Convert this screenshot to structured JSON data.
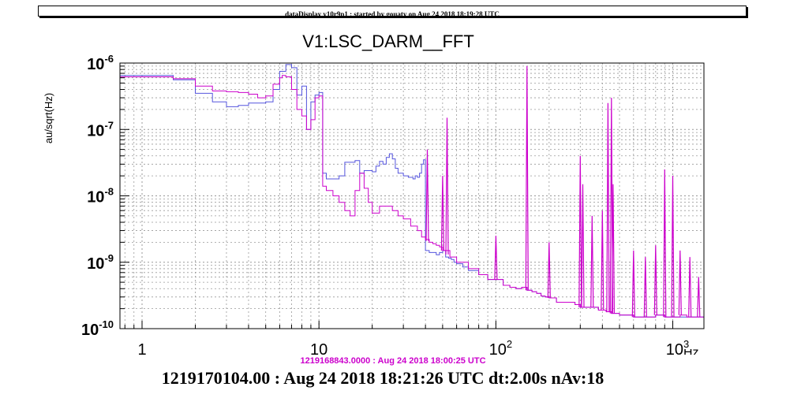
{
  "header": {
    "text": "dataDisplay v10r9p1 : started by gouaty on Aug 24 2018 18:19:28 UTC"
  },
  "chart_data": {
    "type": "line",
    "title": "V1:LSC_DARM__FFT",
    "ylabel": "au/sqrt(Hz)",
    "xlabel": "Hz",
    "xscale": "log",
    "yscale": "log",
    "xlim": [
      0.75,
      1500
    ],
    "ylim": [
      1e-10,
      1e-06
    ],
    "grid": true,
    "x_tick_labels": [
      {
        "value": 1,
        "label": "1"
      },
      {
        "value": 10,
        "label": "10"
      },
      {
        "value": 100,
        "base": "10",
        "exp": "2"
      },
      {
        "value": 1000,
        "base": "10",
        "exp": "3"
      }
    ],
    "y_tick_labels": [
      {
        "value": 1e-06,
        "base": "10",
        "exp": "-6"
      },
      {
        "value": 1e-07,
        "base": "10",
        "exp": "-7"
      },
      {
        "value": 1e-08,
        "base": "10",
        "exp": "-8"
      },
      {
        "value": 1e-09,
        "base": "10",
        "exp": "-9"
      },
      {
        "value": 1e-10,
        "base": "10",
        "exp": "-10"
      }
    ],
    "series": [
      {
        "color": "#5555dd",
        "x": [
          0.75,
          1,
          1.5,
          2,
          2.5,
          3,
          3.5,
          4,
          5,
          5.5,
          6,
          6.5,
          7,
          7.5,
          8,
          8.5,
          9,
          9.5,
          10,
          10.5,
          11,
          12,
          13,
          14,
          15,
          16,
          17,
          18,
          19,
          20,
          21,
          22,
          23,
          24,
          25,
          26,
          27,
          28,
          30,
          32,
          34,
          35,
          36,
          37,
          38,
          39,
          40,
          42,
          44,
          46,
          48,
          50,
          52,
          54,
          56,
          58,
          60,
          65,
          70,
          80,
          90,
          100,
          110,
          120,
          130,
          140,
          150,
          160,
          170,
          180,
          190,
          200,
          220,
          250,
          280,
          300,
          320,
          350,
          380,
          400,
          420,
          450,
          480,
          500,
          550,
          600,
          700,
          800,
          900,
          1000,
          1100,
          1200,
          1300,
          1400,
          1500
        ],
        "y": [
          6.5e-07,
          6.5e-07,
          5.6e-07,
          3.5e-07,
          2.6e-07,
          2.2e-07,
          2.3e-07,
          2.5e-07,
          2.6e-07,
          4e-07,
          7.5e-07,
          9.5e-07,
          8.5e-07,
          3.3e-07,
          4.5e-07,
          1e-07,
          2.6e-07,
          3.3e-07,
          3.6e-07,
          2.2e-08,
          1.8e-08,
          1.8e-08,
          2e-08,
          3.2e-08,
          3.2e-08,
          3.4e-08,
          2.2e-08,
          2.4e-08,
          2.4e-08,
          2.3e-08,
          2.8e-08,
          3.3e-08,
          3e-08,
          3.8e-08,
          4.3e-08,
          3.6e-08,
          2.6e-08,
          2.2e-08,
          2e-08,
          1.9e-08,
          1.8e-08,
          2e-08,
          1.9e-08,
          2.2e-08,
          3e-08,
          3.5e-08,
          1.5e-09,
          1.4e-09,
          1.4e-09,
          1.3e-09,
          1.4e-09,
          1.5e-09,
          1.2e-09,
          1.15e-09,
          1.1e-09,
          1e-09,
          9.5e-10,
          8.5e-10,
          7.5e-10,
          6.5e-10,
          5.5e-10,
          5.5e-10,
          4.5e-10,
          4.2e-10,
          4e-10,
          4.2e-10,
          3.8e-10,
          3.6e-10,
          3.4e-10,
          3.1e-10,
          3e-10,
          2.9e-10,
          2.5e-10,
          2.5e-10,
          2.3e-10,
          2.1e-10,
          2.1e-10,
          2.1e-10,
          1.9e-10,
          1.9e-10,
          1.8e-10,
          1.7e-10,
          1.7e-10,
          1.6e-10,
          1.6e-10,
          1.5e-10,
          1.5e-10,
          1.6e-10,
          1.5e-10,
          1.5e-10,
          1.5e-10,
          1.5e-10,
          1.5e-10,
          1.5e-10,
          1.5e-10
        ]
      },
      {
        "color": "#cc00cc",
        "x": [
          0.75,
          1,
          1.5,
          2,
          2.5,
          3,
          3.5,
          4,
          4.5,
          5,
          5.5,
          6,
          6.2,
          6.5,
          7,
          7.5,
          8,
          8.5,
          9,
          9.5,
          10,
          10.5,
          11,
          12,
          13,
          14,
          15,
          16,
          17,
          18,
          19,
          20,
          22,
          24,
          26,
          28,
          30,
          33,
          36,
          38,
          40,
          42,
          44,
          46,
          48,
          50,
          55,
          60,
          70,
          80,
          90,
          100,
          110,
          120,
          130,
          140,
          150,
          160,
          170,
          180,
          190,
          200,
          220,
          250,
          280,
          300,
          320,
          350,
          380,
          400,
          420,
          450,
          480,
          500,
          550,
          600,
          700,
          800,
          900,
          1000,
          1100,
          1200,
          1300,
          1400,
          1500
        ],
        "y": [
          6.2e-07,
          6.2e-07,
          5.8e-07,
          4.5e-07,
          3.8e-07,
          3.7e-07,
          3.6e-07,
          3.4e-07,
          3e-07,
          3.2e-07,
          4.8e-07,
          6e-07,
          6.5e-07,
          6.2e-07,
          4e-07,
          2e-07,
          1.6e-07,
          1e-07,
          1.4e-07,
          3e-07,
          3.2e-07,
          1.4e-08,
          1.2e-08,
          1e-08,
          8e-09,
          6e-09,
          5e-09,
          1.2e-08,
          2.2e-08,
          1.3e-08,
          8e-09,
          5.5e-09,
          7e-09,
          7e-09,
          6e-09,
          5e-09,
          4.5e-09,
          3.5e-09,
          3e-09,
          2.4e-09,
          2.2e-09,
          2e-09,
          1.9e-09,
          1.8e-09,
          1.7e-09,
          1.5e-09,
          1.2e-09,
          1e-09,
          8e-10,
          6.5e-10,
          5.5e-10,
          5.5e-10,
          4.5e-10,
          4.2e-10,
          4e-10,
          4.2e-10,
          3.8e-10,
          3.6e-10,
          3.4e-10,
          3.1e-10,
          3e-10,
          2.9e-10,
          2.5e-10,
          2.5e-10,
          2.3e-10,
          2.1e-10,
          2.1e-10,
          2.1e-10,
          1.9e-10,
          1.9e-10,
          1.8e-10,
          1.7e-10,
          1.7e-10,
          1.6e-10,
          1.6e-10,
          1.5e-10,
          1.5e-10,
          1.6e-10,
          1.5e-10,
          1.5e-10,
          1.6e-10,
          1.5e-10,
          1.5e-10,
          1.5e-10,
          1.6e-10
        ]
      }
    ],
    "peaks": [
      {
        "x": 41,
        "y": 5e-08
      },
      {
        "x": 50,
        "y": 2e-08
      },
      {
        "x": 53,
        "y": 1.5e-07
      },
      {
        "x": 100,
        "y": 2.5e-09
      },
      {
        "x": 150,
        "y": 9e-07
      },
      {
        "x": 200,
        "y": 2e-09
      },
      {
        "x": 300,
        "y": 4e-08
      },
      {
        "x": 310,
        "y": 1.5e-08
      },
      {
        "x": 350,
        "y": 5e-09
      },
      {
        "x": 400,
        "y": 6e-09
      },
      {
        "x": 430,
        "y": 2.5e-07
      },
      {
        "x": 450,
        "y": 3e-07
      },
      {
        "x": 460,
        "y": 1.5e-08
      },
      {
        "x": 600,
        "y": 1.5e-09
      },
      {
        "x": 700,
        "y": 1.2e-09
      },
      {
        "x": 800,
        "y": 1.8e-09
      },
      {
        "x": 900,
        "y": 2.5e-08
      },
      {
        "x": 1000,
        "y": 2e-08
      },
      {
        "x": 1100,
        "y": 1.5e-09
      },
      {
        "x": 1250,
        "y": 1.2e-09
      },
      {
        "x": 1400,
        "y": 6e-10
      }
    ]
  },
  "reference_time": "1219168843.0000 : Aug 24 2018 18:00:25 UTC",
  "footer": "1219170104.00 : Aug 24 2018 18:21:26 UTC dt:2.00s nAv:18"
}
